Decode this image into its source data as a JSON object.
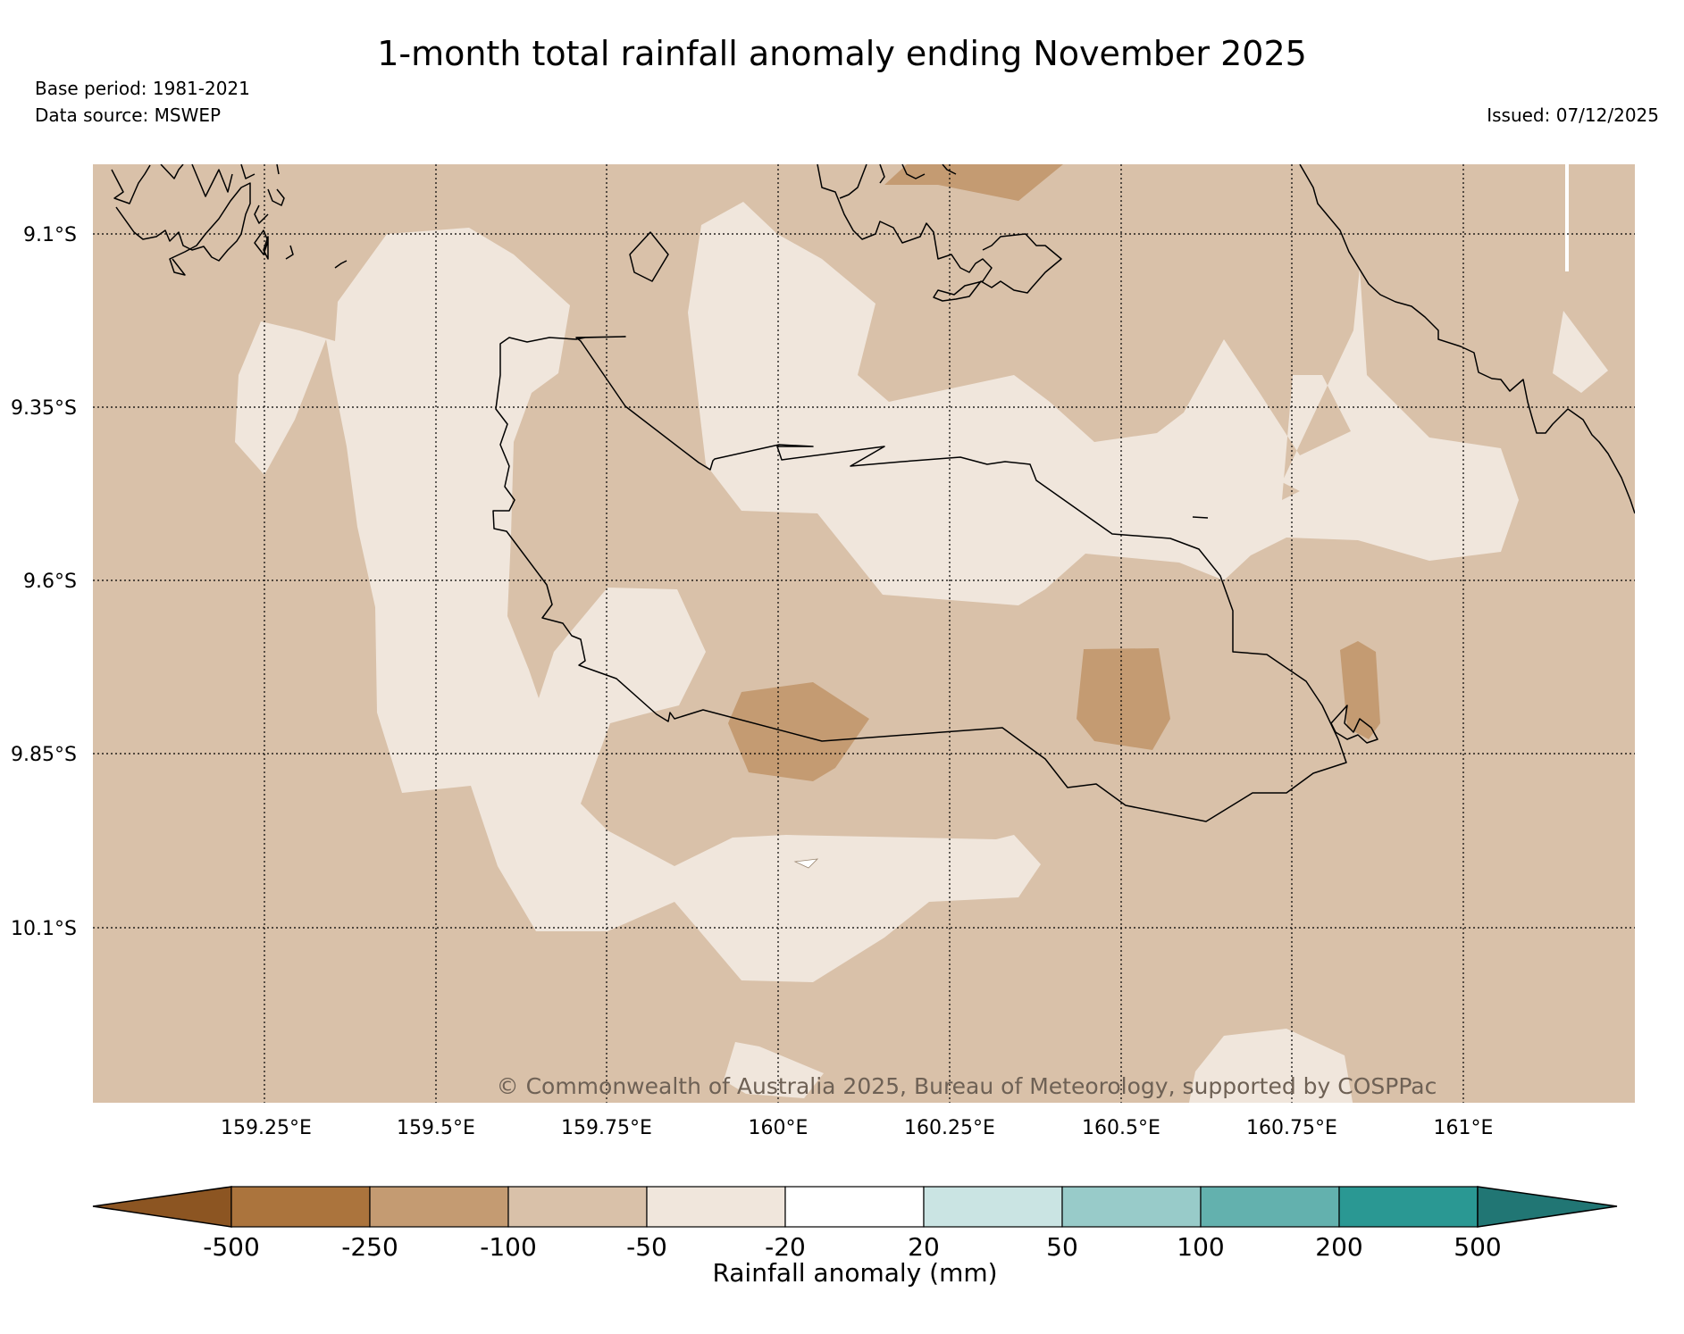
{
  "header": {
    "title": "1-month total rainfall anomaly ending November 2025",
    "base_period": "Base period: 1981-2021",
    "data_source": "Data source: MSWEP",
    "issued": "Issued: 07/12/2025"
  },
  "map": {
    "copyright": "© Commonwealth of Australia 2025, Bureau of Meteorology, supported by COSPPac",
    "lat_labels": [
      "9.1°S",
      "9.35°S",
      "9.6°S",
      "9.85°S",
      "10.1°S"
    ],
    "lon_labels": [
      "159.25°E",
      "159.5°E",
      "159.75°E",
      "160°E",
      "160.25°E",
      "160.5°E",
      "160.75°E",
      "161°E"
    ],
    "region_colors": {
      "minus_250_to_minus_100": "#c49b72",
      "minus_100_to_minus_50": "#d9c1a9",
      "minus_50_to_minus_20": "#f0e6dc",
      "minus_20_to_20": "#ffffff"
    }
  },
  "colorbar": {
    "label": "Rainfall anomaly (mm)",
    "ticks": [
      "-500",
      "-250",
      "-100",
      "-50",
      "-20",
      "20",
      "50",
      "100",
      "200",
      "500"
    ],
    "under_color": "#8c5522",
    "over_color": "#217674",
    "bins": [
      {
        "range": "-500 to -250",
        "color": "#ab743d"
      },
      {
        "range": "-250 to -100",
        "color": "#c49b72"
      },
      {
        "range": "-100 to -50",
        "color": "#d9c1a9"
      },
      {
        "range": "-50 to -20",
        "color": "#f0e6dc"
      },
      {
        "range": "-20 to 20",
        "color": "#ffffff"
      },
      {
        "range": "20 to 50",
        "color": "#cae4e3"
      },
      {
        "range": "50 to 100",
        "color": "#98cbc9"
      },
      {
        "range": "100 to 200",
        "color": "#63b1ae"
      },
      {
        "range": "200 to 500",
        "color": "#2a9893"
      }
    ]
  }
}
